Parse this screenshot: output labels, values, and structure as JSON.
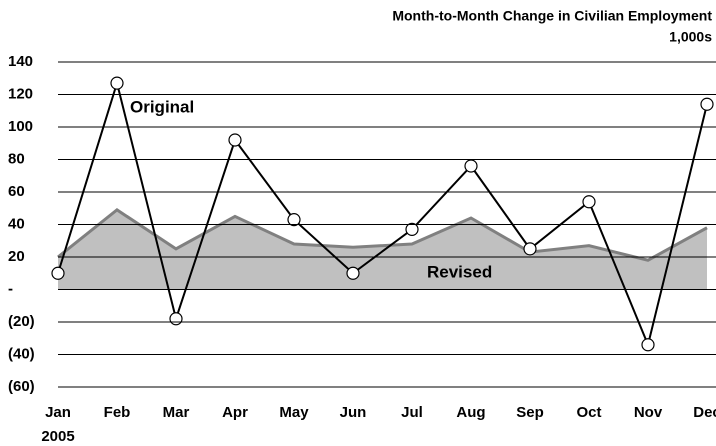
{
  "chart_data": {
    "type": "line",
    "title": "Month-to-Month Change in Civilian Employment",
    "subtitle": "1,000s",
    "year_label": "2005",
    "categories": [
      "Jan",
      "Feb",
      "Mar",
      "Apr",
      "May",
      "Jun",
      "Jul",
      "Aug",
      "Sep",
      "Oct",
      "Nov",
      "Dec"
    ],
    "series": [
      {
        "name": "Revised",
        "style": "area",
        "color": "#c0c0c0",
        "line_color": "#808080",
        "values": [
          20,
          49,
          25,
          45,
          28,
          26,
          28,
          44,
          23,
          27,
          18,
          38
        ]
      },
      {
        "name": "Original",
        "style": "line",
        "color": "#000000",
        "values": [
          10,
          127,
          -18,
          92,
          43,
          10,
          37,
          76,
          25,
          54,
          -34,
          114
        ]
      }
    ],
    "ylim": [
      -60,
      140
    ],
    "yticks": [
      {
        "value": -60,
        "label": "(60)"
      },
      {
        "value": -40,
        "label": "(40)"
      },
      {
        "value": -20,
        "label": "(20)"
      },
      {
        "value": 0,
        "label": "-"
      },
      20,
      40,
      60,
      80,
      100,
      120,
      140
    ],
    "grid": true
  }
}
